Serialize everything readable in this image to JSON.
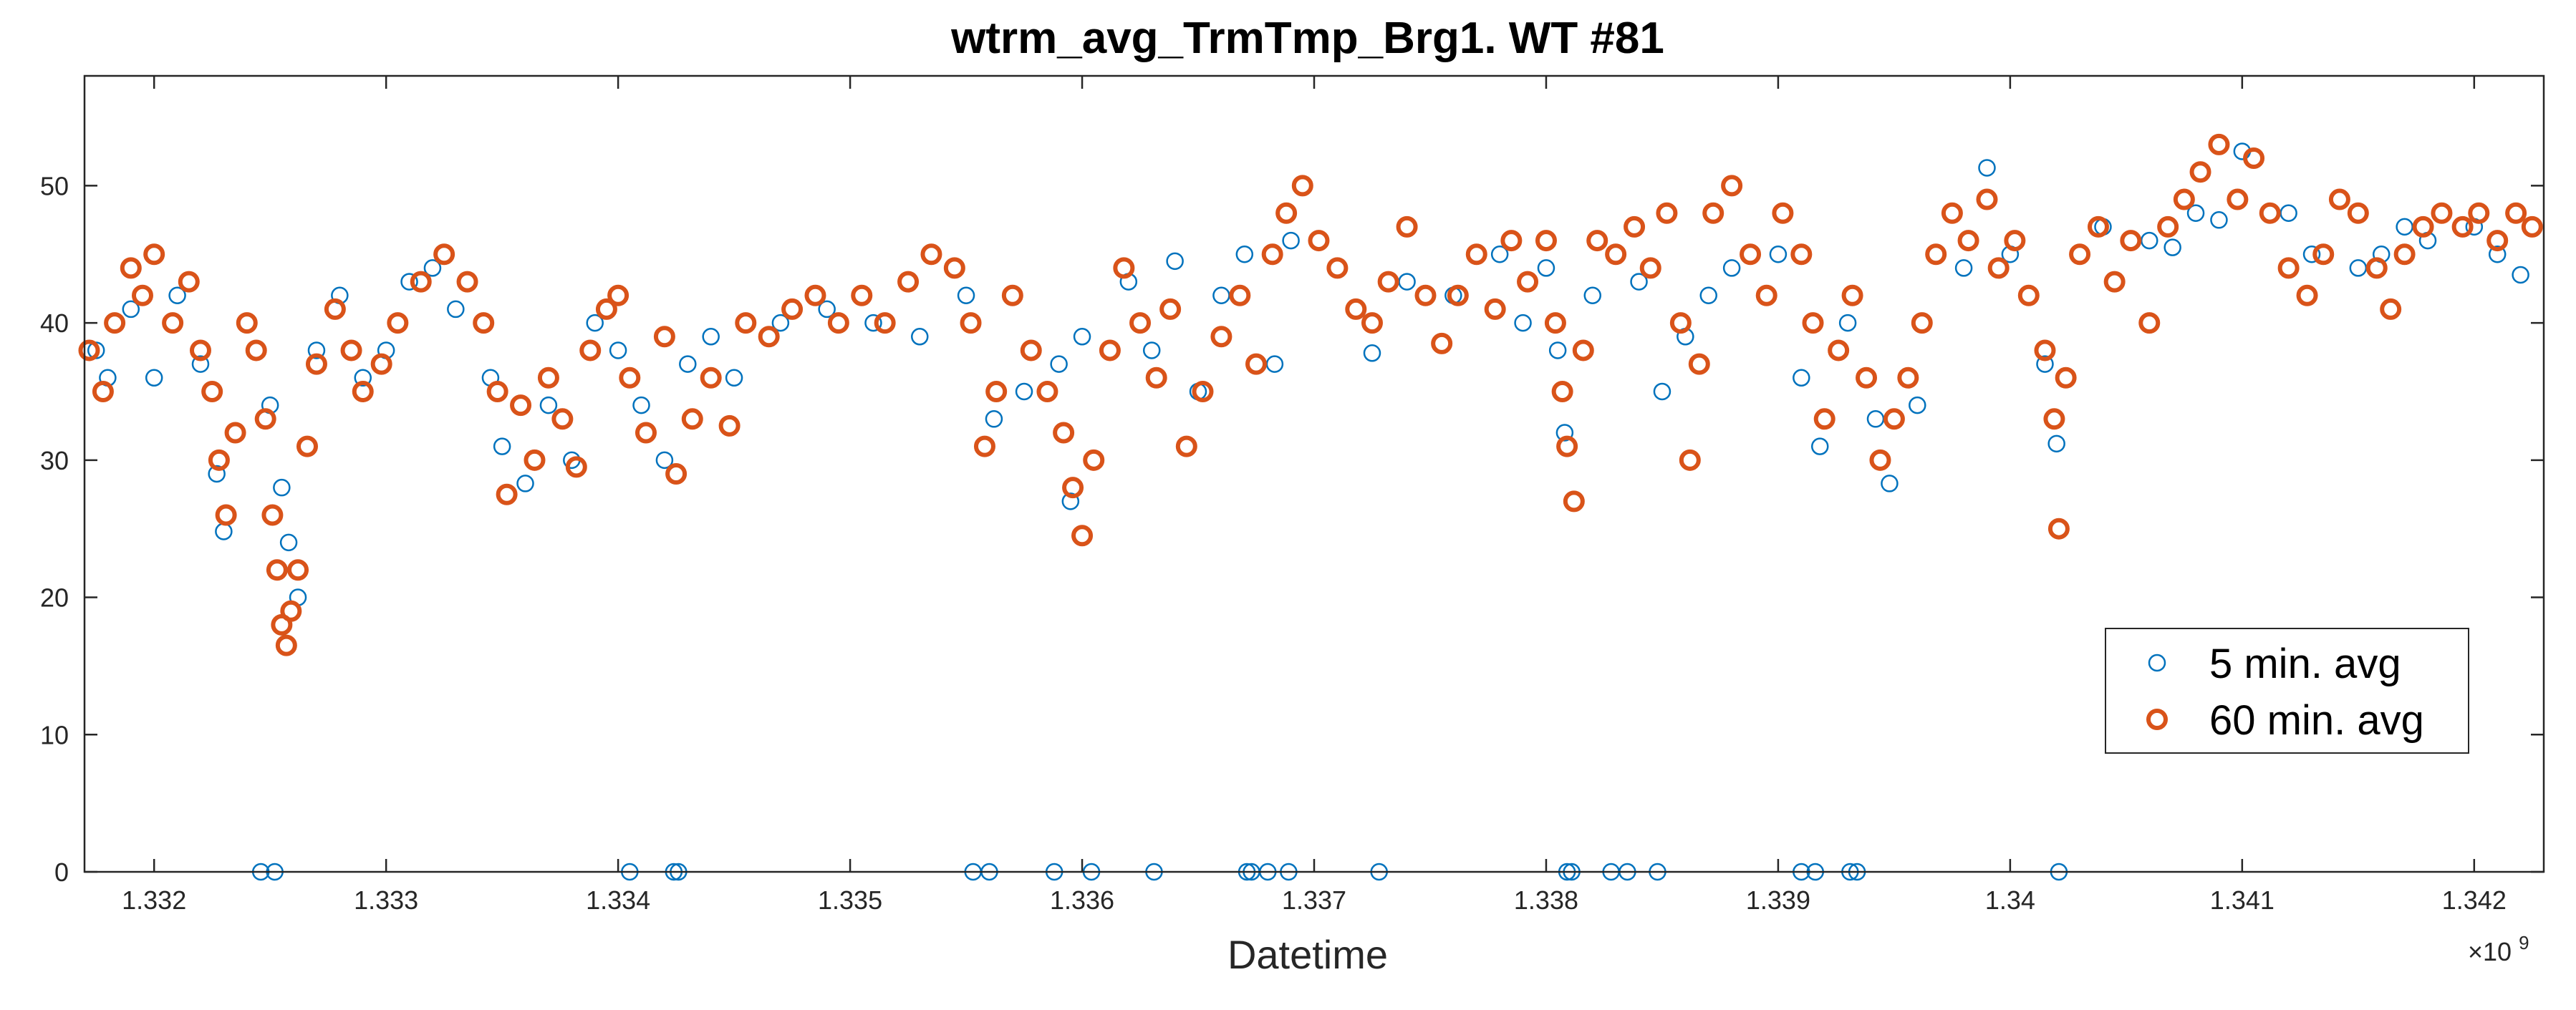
{
  "chart_data": {
    "type": "scatter",
    "title": "wtrm_avg_TrmTmp_Brg1. WT #81",
    "xlabel": "Datetime",
    "ylabel": "",
    "xlim": [
      1.3317,
      1.3423
    ],
    "ylim": [
      0,
      58
    ],
    "x_exponent_label": "×10",
    "x_exponent_power": "9",
    "x_ticks": [
      1.332,
      1.333,
      1.334,
      1.335,
      1.336,
      1.337,
      1.338,
      1.339,
      1.34,
      1.341,
      1.342
    ],
    "x_tick_labels": [
      "1.332",
      "1.333",
      "1.334",
      "1.335",
      "1.336",
      "1.337",
      "1.338",
      "1.339",
      "1.34",
      "1.341",
      "1.342"
    ],
    "y_ticks": [
      0,
      10,
      20,
      30,
      40,
      50
    ],
    "y_tick_labels": [
      "0",
      "10",
      "20",
      "30",
      "40",
      "50"
    ],
    "grid": false,
    "legend_position": "lower-right",
    "series": [
      {
        "name": "5 min. avg",
        "color": "#0072BD",
        "marker": "open-circle-thin",
        "points": [
          [
            1.33175,
            38
          ],
          [
            1.3318,
            36
          ],
          [
            1.3319,
            41
          ],
          [
            1.332,
            36
          ],
          [
            1.3321,
            42
          ],
          [
            1.3322,
            37
          ],
          [
            1.33227,
            29
          ],
          [
            1.3323,
            24.8
          ],
          [
            1.3324,
            40
          ],
          [
            1.3325,
            34
          ],
          [
            1.33255,
            28
          ],
          [
            1.33258,
            24
          ],
          [
            1.33262,
            20
          ],
          [
            1.3327,
            38
          ],
          [
            1.3328,
            42
          ],
          [
            1.3329,
            36
          ],
          [
            1.333,
            38
          ],
          [
            1.3331,
            43
          ],
          [
            1.3332,
            44
          ],
          [
            1.3333,
            41
          ],
          [
            1.33345,
            36
          ],
          [
            1.3335,
            31
          ],
          [
            1.3336,
            28.3
          ],
          [
            1.3337,
            34
          ],
          [
            1.3338,
            30
          ],
          [
            1.3339,
            40
          ],
          [
            1.334,
            38
          ],
          [
            1.3341,
            34
          ],
          [
            1.3342,
            30
          ],
          [
            1.3343,
            37
          ],
          [
            1.3344,
            39
          ],
          [
            1.3345,
            36
          ],
          [
            1.3347,
            40
          ],
          [
            1.3349,
            41
          ],
          [
            1.3351,
            40
          ],
          [
            1.3353,
            39
          ],
          [
            1.3355,
            42
          ],
          [
            1.33562,
            33
          ],
          [
            1.33575,
            35
          ],
          [
            1.3359,
            37
          ],
          [
            1.33595,
            27
          ],
          [
            1.336,
            39
          ],
          [
            1.3362,
            43
          ],
          [
            1.3363,
            38
          ],
          [
            1.3364,
            44.5
          ],
          [
            1.3365,
            35
          ],
          [
            1.3366,
            42
          ],
          [
            1.3367,
            45
          ],
          [
            1.33683,
            37
          ],
          [
            1.3369,
            46
          ],
          [
            1.3371,
            44
          ],
          [
            1.33725,
            37.8
          ],
          [
            1.3374,
            43
          ],
          [
            1.3376,
            42
          ],
          [
            1.3378,
            45
          ],
          [
            1.3379,
            40
          ],
          [
            1.338,
            44
          ],
          [
            1.33805,
            38
          ],
          [
            1.33808,
            32
          ],
          [
            1.33812,
            27
          ],
          [
            1.3382,
            42
          ],
          [
            1.3384,
            43
          ],
          [
            1.3385,
            35
          ],
          [
            1.3386,
            39
          ],
          [
            1.3387,
            42
          ],
          [
            1.3388,
            44
          ],
          [
            1.339,
            45
          ],
          [
            1.3391,
            36
          ],
          [
            1.33918,
            31
          ],
          [
            1.3393,
            40
          ],
          [
            1.33942,
            33
          ],
          [
            1.33948,
            28.3
          ],
          [
            1.3396,
            34
          ],
          [
            1.3398,
            44
          ],
          [
            1.3399,
            51.3
          ],
          [
            1.34,
            45
          ],
          [
            1.34015,
            37
          ],
          [
            1.3402,
            31.2
          ],
          [
            1.3404,
            47
          ],
          [
            1.3406,
            46
          ],
          [
            1.3407,
            45.5
          ],
          [
            1.3408,
            48
          ],
          [
            1.3409,
            47.5
          ],
          [
            1.341,
            52.5
          ],
          [
            1.3412,
            48
          ],
          [
            1.3413,
            45
          ],
          [
            1.3415,
            44
          ],
          [
            1.3416,
            45
          ],
          [
            1.3417,
            47
          ],
          [
            1.3418,
            46
          ],
          [
            1.342,
            47
          ],
          [
            1.3421,
            45
          ],
          [
            1.3422,
            43.5
          ],
          [
            1.33246,
            0
          ],
          [
            1.33252,
            0
          ],
          [
            1.33405,
            0
          ],
          [
            1.33424,
            0
          ],
          [
            1.33426,
            0
          ],
          [
            1.33553,
            0
          ],
          [
            1.3356,
            0
          ],
          [
            1.33588,
            0
          ],
          [
            1.33604,
            0
          ],
          [
            1.33631,
            0
          ],
          [
            1.33671,
            0
          ],
          [
            1.33673,
            0
          ],
          [
            1.3368,
            0
          ],
          [
            1.33689,
            0
          ],
          [
            1.33728,
            0
          ],
          [
            1.33809,
            0
          ],
          [
            1.33811,
            0
          ],
          [
            1.33828,
            0
          ],
          [
            1.33835,
            0
          ],
          [
            1.33848,
            0
          ],
          [
            1.3391,
            0
          ],
          [
            1.33916,
            0
          ],
          [
            1.33931,
            0
          ],
          [
            1.33934,
            0
          ],
          [
            1.34021,
            0
          ]
        ]
      },
      {
        "name": "60 min. avg",
        "color": "#D95319",
        "marker": "open-circle-thick",
        "points": [
          [
            1.33172,
            38
          ],
          [
            1.33178,
            35
          ],
          [
            1.33183,
            40
          ],
          [
            1.3319,
            44
          ],
          [
            1.33195,
            42
          ],
          [
            1.332,
            45
          ],
          [
            1.33208,
            40
          ],
          [
            1.33215,
            43
          ],
          [
            1.3322,
            38
          ],
          [
            1.33225,
            35
          ],
          [
            1.33228,
            30
          ],
          [
            1.33231,
            26
          ],
          [
            1.33235,
            32
          ],
          [
            1.3324,
            40
          ],
          [
            1.33244,
            38
          ],
          [
            1.33248,
            33
          ],
          [
            1.33251,
            26
          ],
          [
            1.33253,
            22
          ],
          [
            1.33255,
            18
          ],
          [
            1.33257,
            16.5
          ],
          [
            1.33259,
            19
          ],
          [
            1.33262,
            22
          ],
          [
            1.33266,
            31
          ],
          [
            1.3327,
            37
          ],
          [
            1.33278,
            41
          ],
          [
            1.33285,
            38
          ],
          [
            1.3329,
            35
          ],
          [
            1.33298,
            37
          ],
          [
            1.33305,
            40
          ],
          [
            1.33315,
            43
          ],
          [
            1.33325,
            45
          ],
          [
            1.33335,
            43
          ],
          [
            1.33342,
            40
          ],
          [
            1.33348,
            35
          ],
          [
            1.33352,
            27.5
          ],
          [
            1.33358,
            34
          ],
          [
            1.33364,
            30
          ],
          [
            1.3337,
            36
          ],
          [
            1.33376,
            33
          ],
          [
            1.33382,
            29.5
          ],
          [
            1.33388,
            38
          ],
          [
            1.33395,
            41
          ],
          [
            1.334,
            42
          ],
          [
            1.33405,
            36
          ],
          [
            1.33412,
            32
          ],
          [
            1.3342,
            39
          ],
          [
            1.33425,
            29
          ],
          [
            1.33432,
            33
          ],
          [
            1.3344,
            36
          ],
          [
            1.33448,
            32.5
          ],
          [
            1.33455,
            40
          ],
          [
            1.33465,
            39
          ],
          [
            1.33475,
            41
          ],
          [
            1.33485,
            42
          ],
          [
            1.33495,
            40
          ],
          [
            1.33505,
            42
          ],
          [
            1.33515,
            40
          ],
          [
            1.33525,
            43
          ],
          [
            1.33535,
            45
          ],
          [
            1.33545,
            44
          ],
          [
            1.33552,
            40
          ],
          [
            1.33558,
            31
          ],
          [
            1.33563,
            35
          ],
          [
            1.3357,
            42
          ],
          [
            1.33578,
            38
          ],
          [
            1.33585,
            35
          ],
          [
            1.33592,
            32
          ],
          [
            1.33596,
            28
          ],
          [
            1.336,
            24.5
          ],
          [
            1.33605,
            30
          ],
          [
            1.33612,
            38
          ],
          [
            1.33618,
            44
          ],
          [
            1.33625,
            40
          ],
          [
            1.33632,
            36
          ],
          [
            1.33638,
            41
          ],
          [
            1.33645,
            31
          ],
          [
            1.33652,
            35
          ],
          [
            1.3366,
            39
          ],
          [
            1.33668,
            42
          ],
          [
            1.33675,
            37
          ],
          [
            1.33682,
            45
          ],
          [
            1.33688,
            48
          ],
          [
            1.33695,
            50
          ],
          [
            1.33702,
            46
          ],
          [
            1.3371,
            44
          ],
          [
            1.33718,
            41
          ],
          [
            1.33725,
            40
          ],
          [
            1.33732,
            43
          ],
          [
            1.3374,
            47
          ],
          [
            1.33748,
            42
          ],
          [
            1.33755,
            38.5
          ],
          [
            1.33762,
            42
          ],
          [
            1.3377,
            45
          ],
          [
            1.33778,
            41
          ],
          [
            1.33785,
            46
          ],
          [
            1.33792,
            43
          ],
          [
            1.338,
            46
          ],
          [
            1.33804,
            40
          ],
          [
            1.33807,
            35
          ],
          [
            1.33809,
            31
          ],
          [
            1.33812,
            27
          ],
          [
            1.33816,
            38
          ],
          [
            1.33822,
            46
          ],
          [
            1.3383,
            45
          ],
          [
            1.33838,
            47
          ],
          [
            1.33845,
            44
          ],
          [
            1.33852,
            48
          ],
          [
            1.33858,
            40
          ],
          [
            1.33862,
            30
          ],
          [
            1.33866,
            37
          ],
          [
            1.33872,
            48
          ],
          [
            1.3388,
            50
          ],
          [
            1.33888,
            45
          ],
          [
            1.33895,
            42
          ],
          [
            1.33902,
            48
          ],
          [
            1.3391,
            45
          ],
          [
            1.33915,
            40
          ],
          [
            1.3392,
            33
          ],
          [
            1.33926,
            38
          ],
          [
            1.33932,
            42
          ],
          [
            1.33938,
            36
          ],
          [
            1.33944,
            30
          ],
          [
            1.3395,
            33
          ],
          [
            1.33956,
            36
          ],
          [
            1.33962,
            40
          ],
          [
            1.33968,
            45
          ],
          [
            1.33975,
            48
          ],
          [
            1.33982,
            46
          ],
          [
            1.3399,
            49
          ],
          [
            1.33995,
            44
          ],
          [
            1.34002,
            46
          ],
          [
            1.34008,
            42
          ],
          [
            1.34015,
            38
          ],
          [
            1.34019,
            33
          ],
          [
            1.34021,
            25
          ],
          [
            1.34024,
            36
          ],
          [
            1.3403,
            45
          ],
          [
            1.34038,
            47
          ],
          [
            1.34045,
            43
          ],
          [
            1.34052,
            46
          ],
          [
            1.3406,
            40
          ],
          [
            1.34068,
            47
          ],
          [
            1.34075,
            49
          ],
          [
            1.34082,
            51
          ],
          [
            1.3409,
            53
          ],
          [
            1.34098,
            49
          ],
          [
            1.34105,
            52
          ],
          [
            1.34112,
            48
          ],
          [
            1.3412,
            44
          ],
          [
            1.34128,
            42
          ],
          [
            1.34135,
            45
          ],
          [
            1.34142,
            49
          ],
          [
            1.3415,
            48
          ],
          [
            1.34158,
            44
          ],
          [
            1.34164,
            41
          ],
          [
            1.3417,
            45
          ],
          [
            1.34178,
            47
          ],
          [
            1.34186,
            48
          ],
          [
            1.34195,
            47
          ],
          [
            1.34202,
            48
          ],
          [
            1.3421,
            46
          ],
          [
            1.34218,
            48
          ],
          [
            1.34225,
            47
          ]
        ]
      }
    ]
  }
}
